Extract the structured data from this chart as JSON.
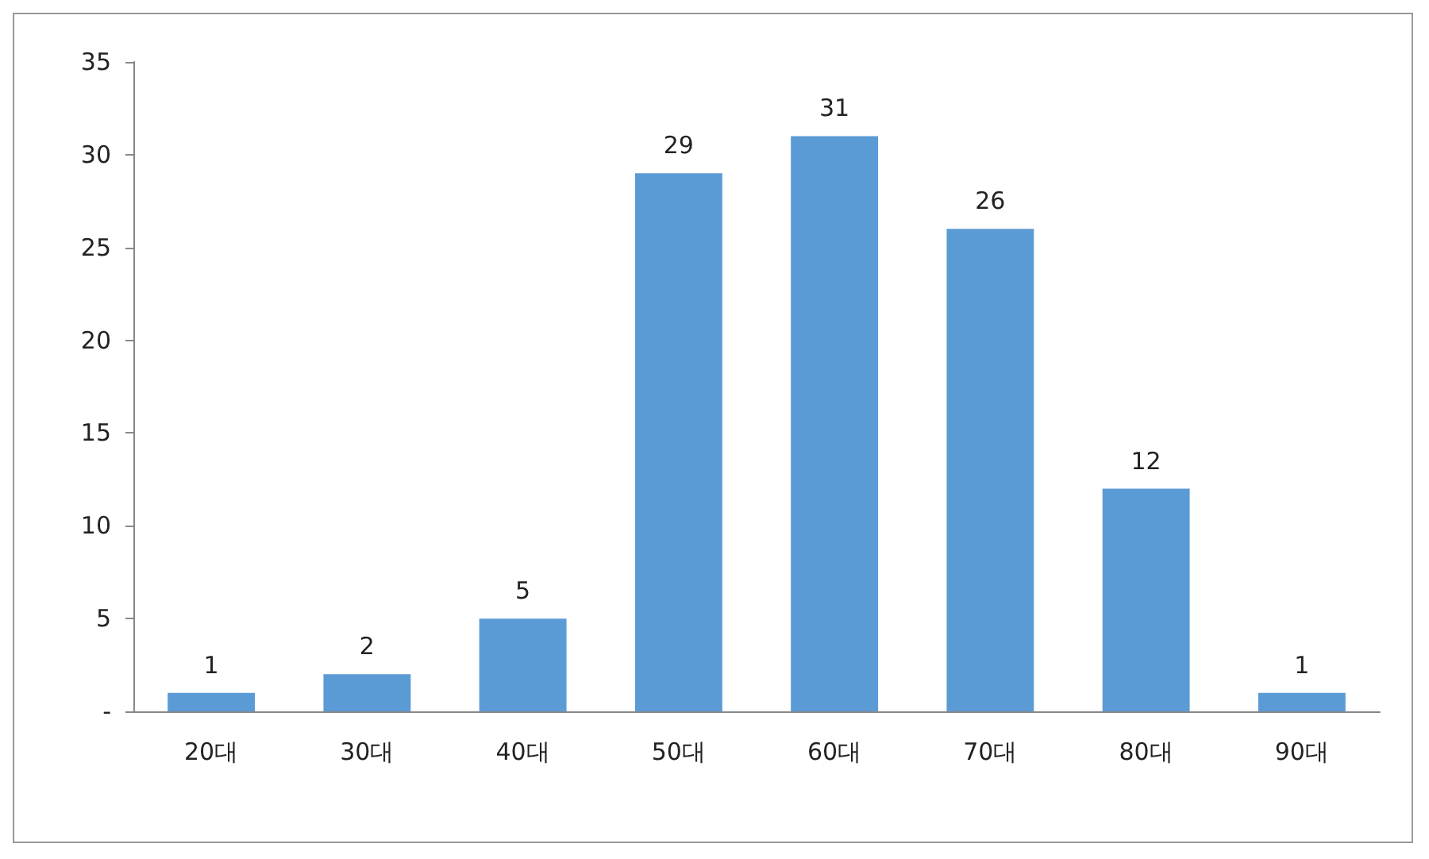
{
  "chart_data": {
    "type": "bar",
    "categories": [
      "20대",
      "30대",
      "40대",
      "50대",
      "60대",
      "70대",
      "80대",
      "90대"
    ],
    "values": [
      1,
      2,
      5,
      29,
      31,
      26,
      12,
      1
    ],
    "color": "#5b9bd5",
    "data_labels": true,
    "ylim": [
      0,
      35
    ],
    "yticks": [
      {
        "value": 0,
        "label": "-"
      },
      5,
      10,
      15,
      20,
      25,
      30,
      35
    ]
  }
}
